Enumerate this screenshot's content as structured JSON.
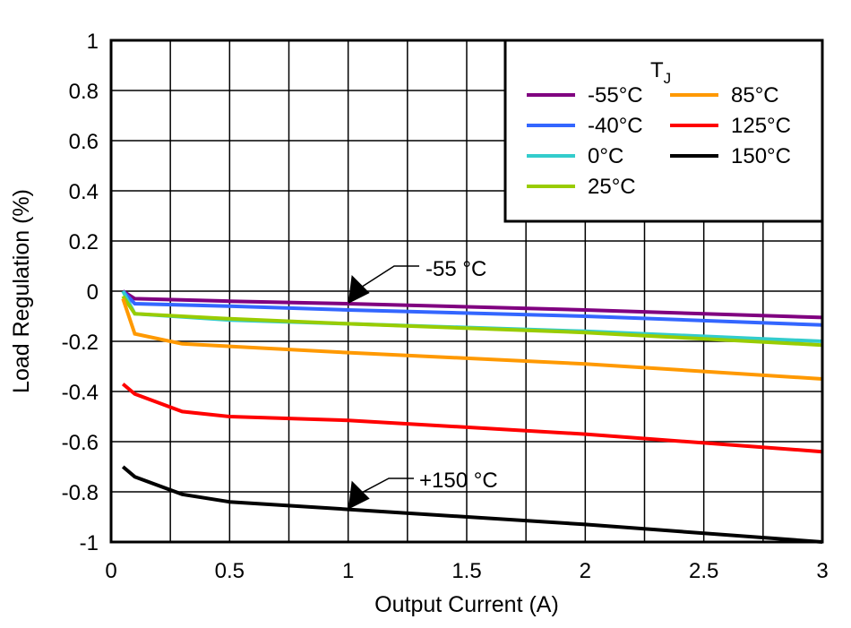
{
  "chart_data": {
    "type": "line",
    "xlabel": "Output Current (A)",
    "ylabel": "Load Regulation (%)",
    "xlim": [
      0,
      3
    ],
    "ylim": [
      -1,
      1
    ],
    "xticks": [
      "0",
      "0.5",
      "1",
      "1.5",
      "2",
      "2.5",
      "3"
    ],
    "yticks": [
      "1",
      "0.8",
      "0.6",
      "0.4",
      "0.2",
      "0",
      "-0.2",
      "-0.4",
      "-0.6",
      "-0.8",
      "-1"
    ],
    "grid": true,
    "legend": {
      "title": "T",
      "title_sub": "J",
      "placement": "top-right"
    },
    "series": [
      {
        "name": "-55°C",
        "color": "#800080",
        "x": [
          0.05,
          0.1,
          0.5,
          1,
          2,
          3
        ],
        "y": [
          0,
          -0.03,
          -0.04,
          -0.05,
          -0.075,
          -0.105
        ]
      },
      {
        "name": "-40°C",
        "color": "#3366ff",
        "x": [
          0.05,
          0.1,
          0.5,
          1,
          2,
          3
        ],
        "y": [
          0,
          -0.05,
          -0.06,
          -0.075,
          -0.1,
          -0.135
        ]
      },
      {
        "name": "0°C",
        "color": "#33cccc",
        "x": [
          0.05,
          0.1,
          0.5,
          1,
          2,
          3
        ],
        "y": [
          0,
          -0.09,
          -0.115,
          -0.13,
          -0.16,
          -0.2
        ]
      },
      {
        "name": "25°C",
        "color": "#99cc00",
        "x": [
          0.05,
          0.1,
          0.5,
          1,
          2,
          3
        ],
        "y": [
          -0.02,
          -0.09,
          -0.11,
          -0.13,
          -0.165,
          -0.215
        ]
      },
      {
        "name": "85°C",
        "color": "#ff9900",
        "x": [
          0.05,
          0.1,
          0.3,
          1,
          2,
          3
        ],
        "y": [
          -0.03,
          -0.17,
          -0.21,
          -0.245,
          -0.29,
          -0.35
        ]
      },
      {
        "name": "125°C",
        "color": "#ff0000",
        "x": [
          0.05,
          0.1,
          0.3,
          0.5,
          1,
          2,
          3
        ],
        "y": [
          -0.37,
          -0.41,
          -0.48,
          -0.5,
          -0.515,
          -0.57,
          -0.64
        ]
      },
      {
        "name": "150°C",
        "color": "#000000",
        "x": [
          0.05,
          0.1,
          0.3,
          0.5,
          1,
          2,
          3
        ],
        "y": [
          -0.7,
          -0.74,
          -0.81,
          -0.84,
          -0.87,
          -0.93,
          -1.0
        ]
      }
    ],
    "annotations": [
      {
        "text": "-55 °C",
        "x": 1,
        "y": -0.05
      },
      {
        "text": "+150 °C",
        "x": 1,
        "y": -0.87
      }
    ]
  }
}
